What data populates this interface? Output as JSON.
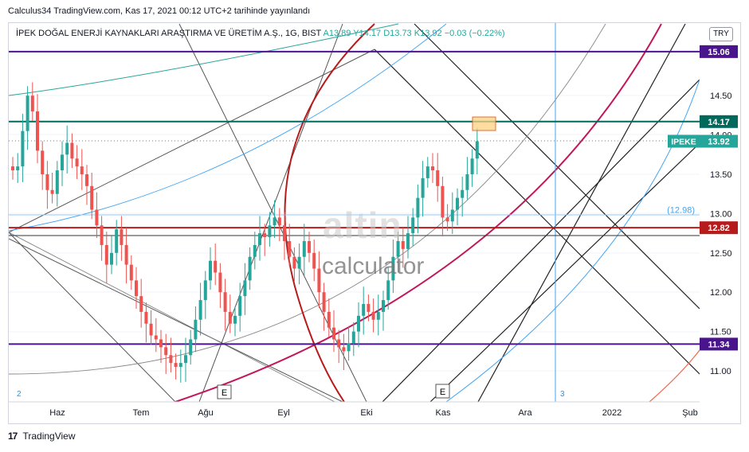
{
  "header": {
    "text": "Calculus34 TradingView.com, Kas 17, 2021 00:12 UTC+2 tarihinde yayınlandı"
  },
  "symbol": {
    "name": "İPEK DOĞAL ENERJİ KAYNAKLARI ARAŞTIRMA VE ÜRETİM A.Ş., 1G, BIST",
    "open": "A13.89",
    "high": "Y14.17",
    "low": "D13.73",
    "close": "K13.92",
    "change": "−0.03 (−0.22%)",
    "currency": "TRY"
  },
  "watermark": {
    "brand": "altin",
    "sub": "calculator"
  },
  "footer": {
    "logo": "17",
    "text": "TradingView"
  },
  "colors": {
    "up": "#26a69a",
    "down": "#ef5350",
    "purple_line": "#4a148c",
    "teal_line": "#00695c",
    "red_line": "#b71c1c",
    "crimson_arc": "#c2185b",
    "blue_line": "#42a5f5"
  },
  "chart_data": {
    "type": "candlestick",
    "x_ticks": [
      "Haz",
      "Tem",
      "Ağu",
      "Eyl",
      "Eki",
      "Kas",
      "Ara",
      "2022",
      "Şub"
    ],
    "y_ticks": [
      "11.00",
      "11.50",
      "12.00",
      "12.50",
      "13.00",
      "13.50",
      "14.00",
      "14.50"
    ],
    "ylim": [
      10.6,
      15.3
    ],
    "horizontal_levels": [
      {
        "value": 15.06,
        "label": "15.06",
        "color": "#4a148c"
      },
      {
        "value": 14.17,
        "label": "14.17",
        "color": "#00695c"
      },
      {
        "value": 12.82,
        "label": "12.82",
        "color": "#b71c1c"
      },
      {
        "value": 11.34,
        "label": "11.34",
        "color": "#4a148c"
      }
    ],
    "light_level": {
      "value": 12.98,
      "label": "(12.98)"
    },
    "last_price": {
      "symbol": "IPEKE",
      "value": 13.92,
      "label": "13.92"
    },
    "event_markers": [
      "E",
      "E"
    ],
    "vertical_marker_labels": [
      "2",
      "3"
    ],
    "closes": [
      13.55,
      13.6,
      14.05,
      14.5,
      14.3,
      13.8,
      13.5,
      13.3,
      13.25,
      13.55,
      13.75,
      13.9,
      13.7,
      13.6,
      13.5,
      13.35,
      13.05,
      12.85,
      12.6,
      12.35,
      12.5,
      12.8,
      12.6,
      12.35,
      12.15,
      11.95,
      11.75,
      11.6,
      11.45,
      11.4,
      11.3,
      11.2,
      11.1,
      11.05,
      11.1,
      11.2,
      11.4,
      11.65,
      11.9,
      12.15,
      12.4,
      12.25,
      12.0,
      11.75,
      11.6,
      11.7,
      11.95,
      12.15,
      12.45,
      12.6,
      12.75,
      12.7,
      12.85,
      12.95,
      12.85,
      12.65,
      12.45,
      12.3,
      12.45,
      12.65,
      12.5,
      12.3,
      12.0,
      11.75,
      11.55,
      11.4,
      11.3,
      11.25,
      11.35,
      11.5,
      11.7,
      11.85,
      11.75,
      11.65,
      11.75,
      11.9,
      12.15,
      12.45,
      12.65,
      12.55,
      12.75,
      12.95,
      13.2,
      13.45,
      13.6,
      13.55,
      13.35,
      12.95,
      12.9,
      13.05,
      13.2,
      13.3,
      13.5,
      13.7,
      13.92
    ]
  }
}
